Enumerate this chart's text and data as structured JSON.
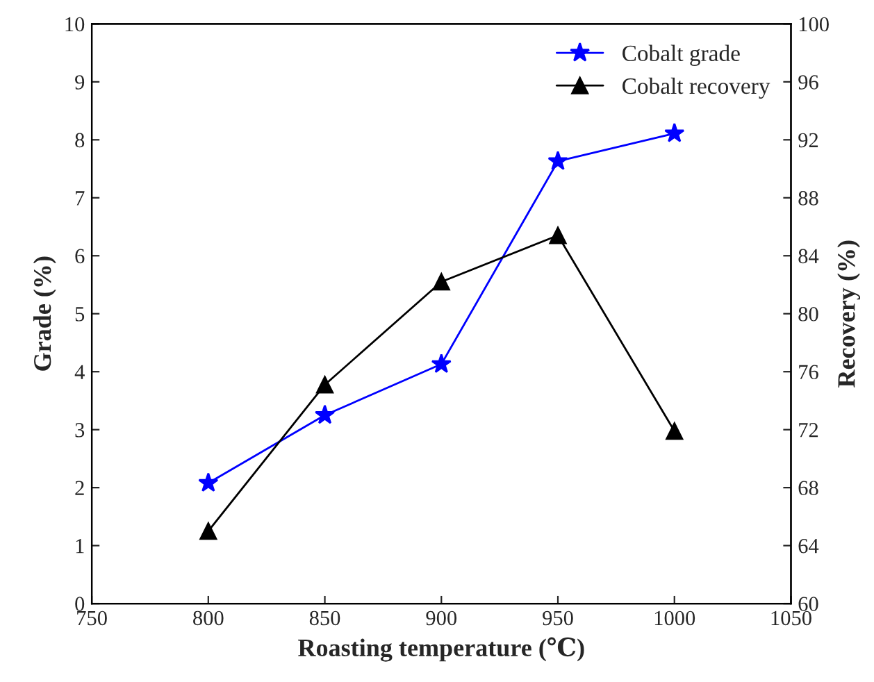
{
  "chart_data": {
    "type": "line",
    "xlabel": "Roasting temperature (℃)",
    "ylabel": "Grade (%)",
    "y2label": "Recovery (%)",
    "x": [
      800,
      850,
      900,
      950,
      1000
    ],
    "series": [
      {
        "name": "Cobalt grade",
        "color": "#0000ff",
        "marker": "star",
        "values": [
          2.08,
          3.25,
          4.13,
          7.63,
          8.11
        ]
      },
      {
        "name": "Cobalt recovery",
        "color": "#000000",
        "marker": "triangle",
        "axis": "y2",
        "values": [
          65.0,
          75.1,
          82.2,
          85.4,
          71.9
        ]
      }
    ],
    "xlim": [
      750,
      1050
    ],
    "xticks": [
      750,
      800,
      850,
      900,
      950,
      1000,
      1050
    ],
    "ylim": [
      0,
      10
    ],
    "yticks": [
      0,
      1,
      2,
      3,
      4,
      5,
      6,
      7,
      8,
      9,
      10
    ],
    "y2lim": [
      60,
      100
    ],
    "y2ticks": [
      60,
      64,
      68,
      72,
      76,
      80,
      84,
      88,
      92,
      96,
      100
    ],
    "legend": "top right",
    "grid": false,
    "line_style": "solid"
  }
}
